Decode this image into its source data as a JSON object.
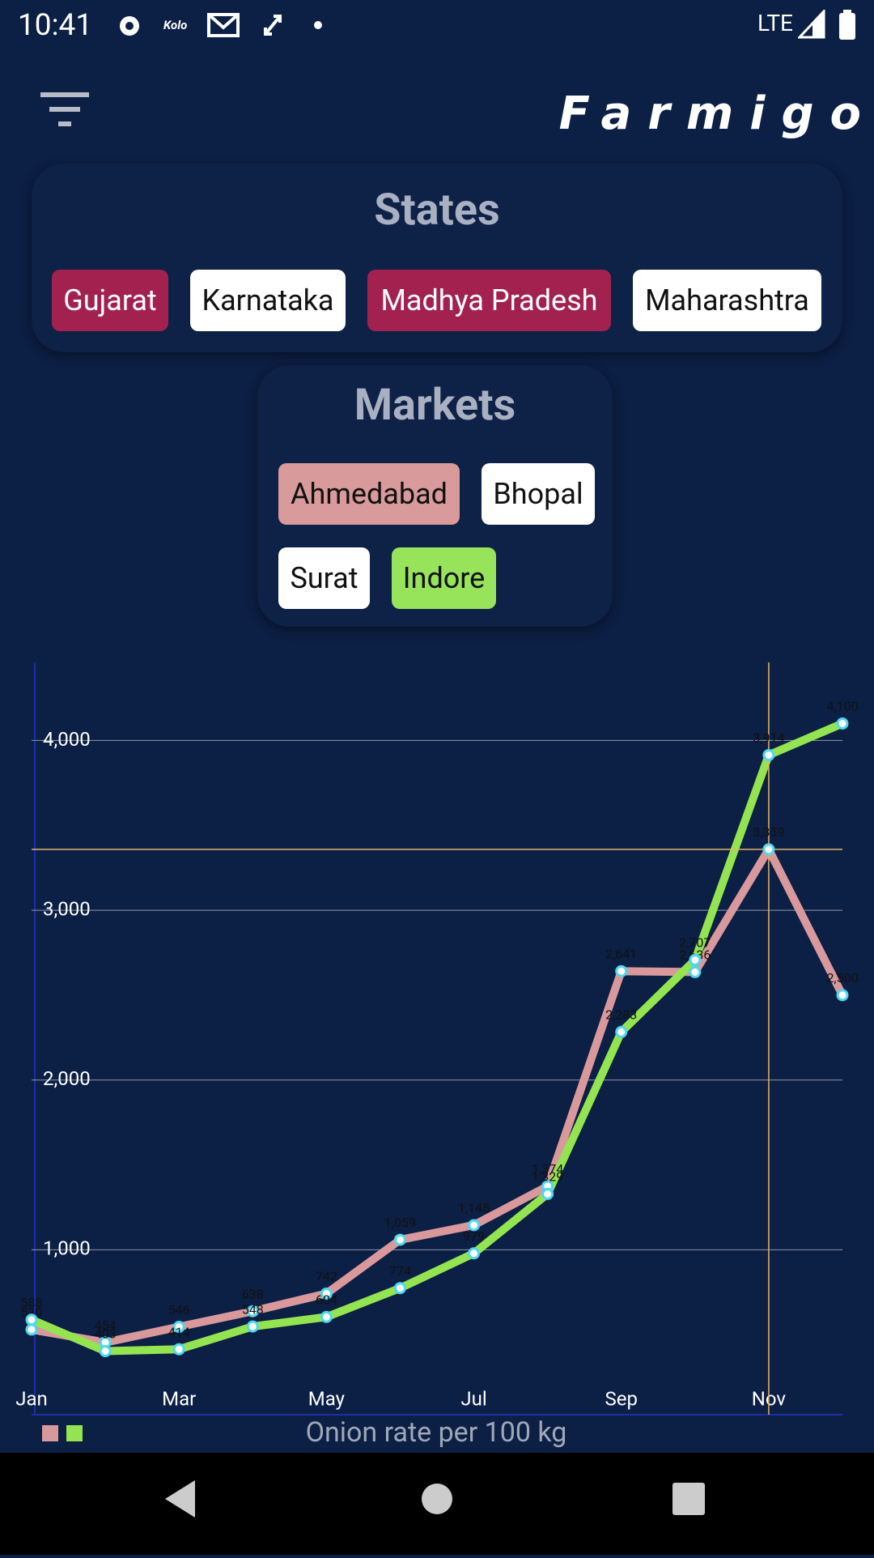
{
  "status_bar": {
    "time": "10:41",
    "app": "Kolo",
    "network": "LTE"
  },
  "header": {
    "brand": "Farmigo"
  },
  "states": {
    "title": "States",
    "chips": [
      {
        "label": "Gujarat",
        "selected": true
      },
      {
        "label": "Karnataka",
        "selected": false
      },
      {
        "label": "Madhya Pradesh",
        "selected": true
      },
      {
        "label": "Maharashtra",
        "selected": false
      }
    ]
  },
  "markets": {
    "title": "Markets",
    "chips": [
      {
        "label": "Ahmedabad",
        "color": "#d89a9a"
      },
      {
        "label": "Bhopal",
        "color": "#ffffff"
      },
      {
        "label": "Surat",
        "color": "#ffffff"
      },
      {
        "label": "Indore",
        "color": "#97e35a"
      }
    ]
  },
  "chart_data": {
    "type": "line",
    "title": "Onion rate per 100 kg",
    "categories": [
      "Jan",
      null,
      "Mar",
      null,
      "May",
      null,
      "Jul",
      null,
      "Sep",
      null,
      "Nov",
      null
    ],
    "series": [
      {
        "color": "#d9999c",
        "values": [
          530,
          454,
          546,
          638,
          742,
          1059,
          1145,
          1374,
          2641,
          2636,
          3359,
          2500
        ],
        "value_labels": [
          "530",
          "454",
          "546",
          "638",
          "742",
          "1,059",
          "1,145",
          "1,374",
          "2,641",
          "2,636",
          "3,359",
          "2,500"
        ]
      },
      {
        "color": "#94e451",
        "values": [
          588,
          403,
          414,
          548,
          604,
          774,
          979,
          1329,
          2283,
          2707,
          3914,
          4100
        ],
        "value_labels": [
          "588",
          "403",
          "414",
          "548",
          "604",
          "774",
          "979",
          "1,329",
          "2,283",
          "2,707",
          "3,914",
          "4,100"
        ]
      }
    ],
    "ylim": [
      0,
      4460
    ],
    "yticks": [
      {
        "value": 1000,
        "label": "1,000"
      },
      {
        "value": 2000,
        "label": "2,000"
      },
      {
        "value": 3000,
        "label": "3,000"
      },
      {
        "value": 4000,
        "label": "4,000"
      }
    ],
    "grid": true,
    "crosshair": {
      "series": 0,
      "index": 10
    }
  }
}
